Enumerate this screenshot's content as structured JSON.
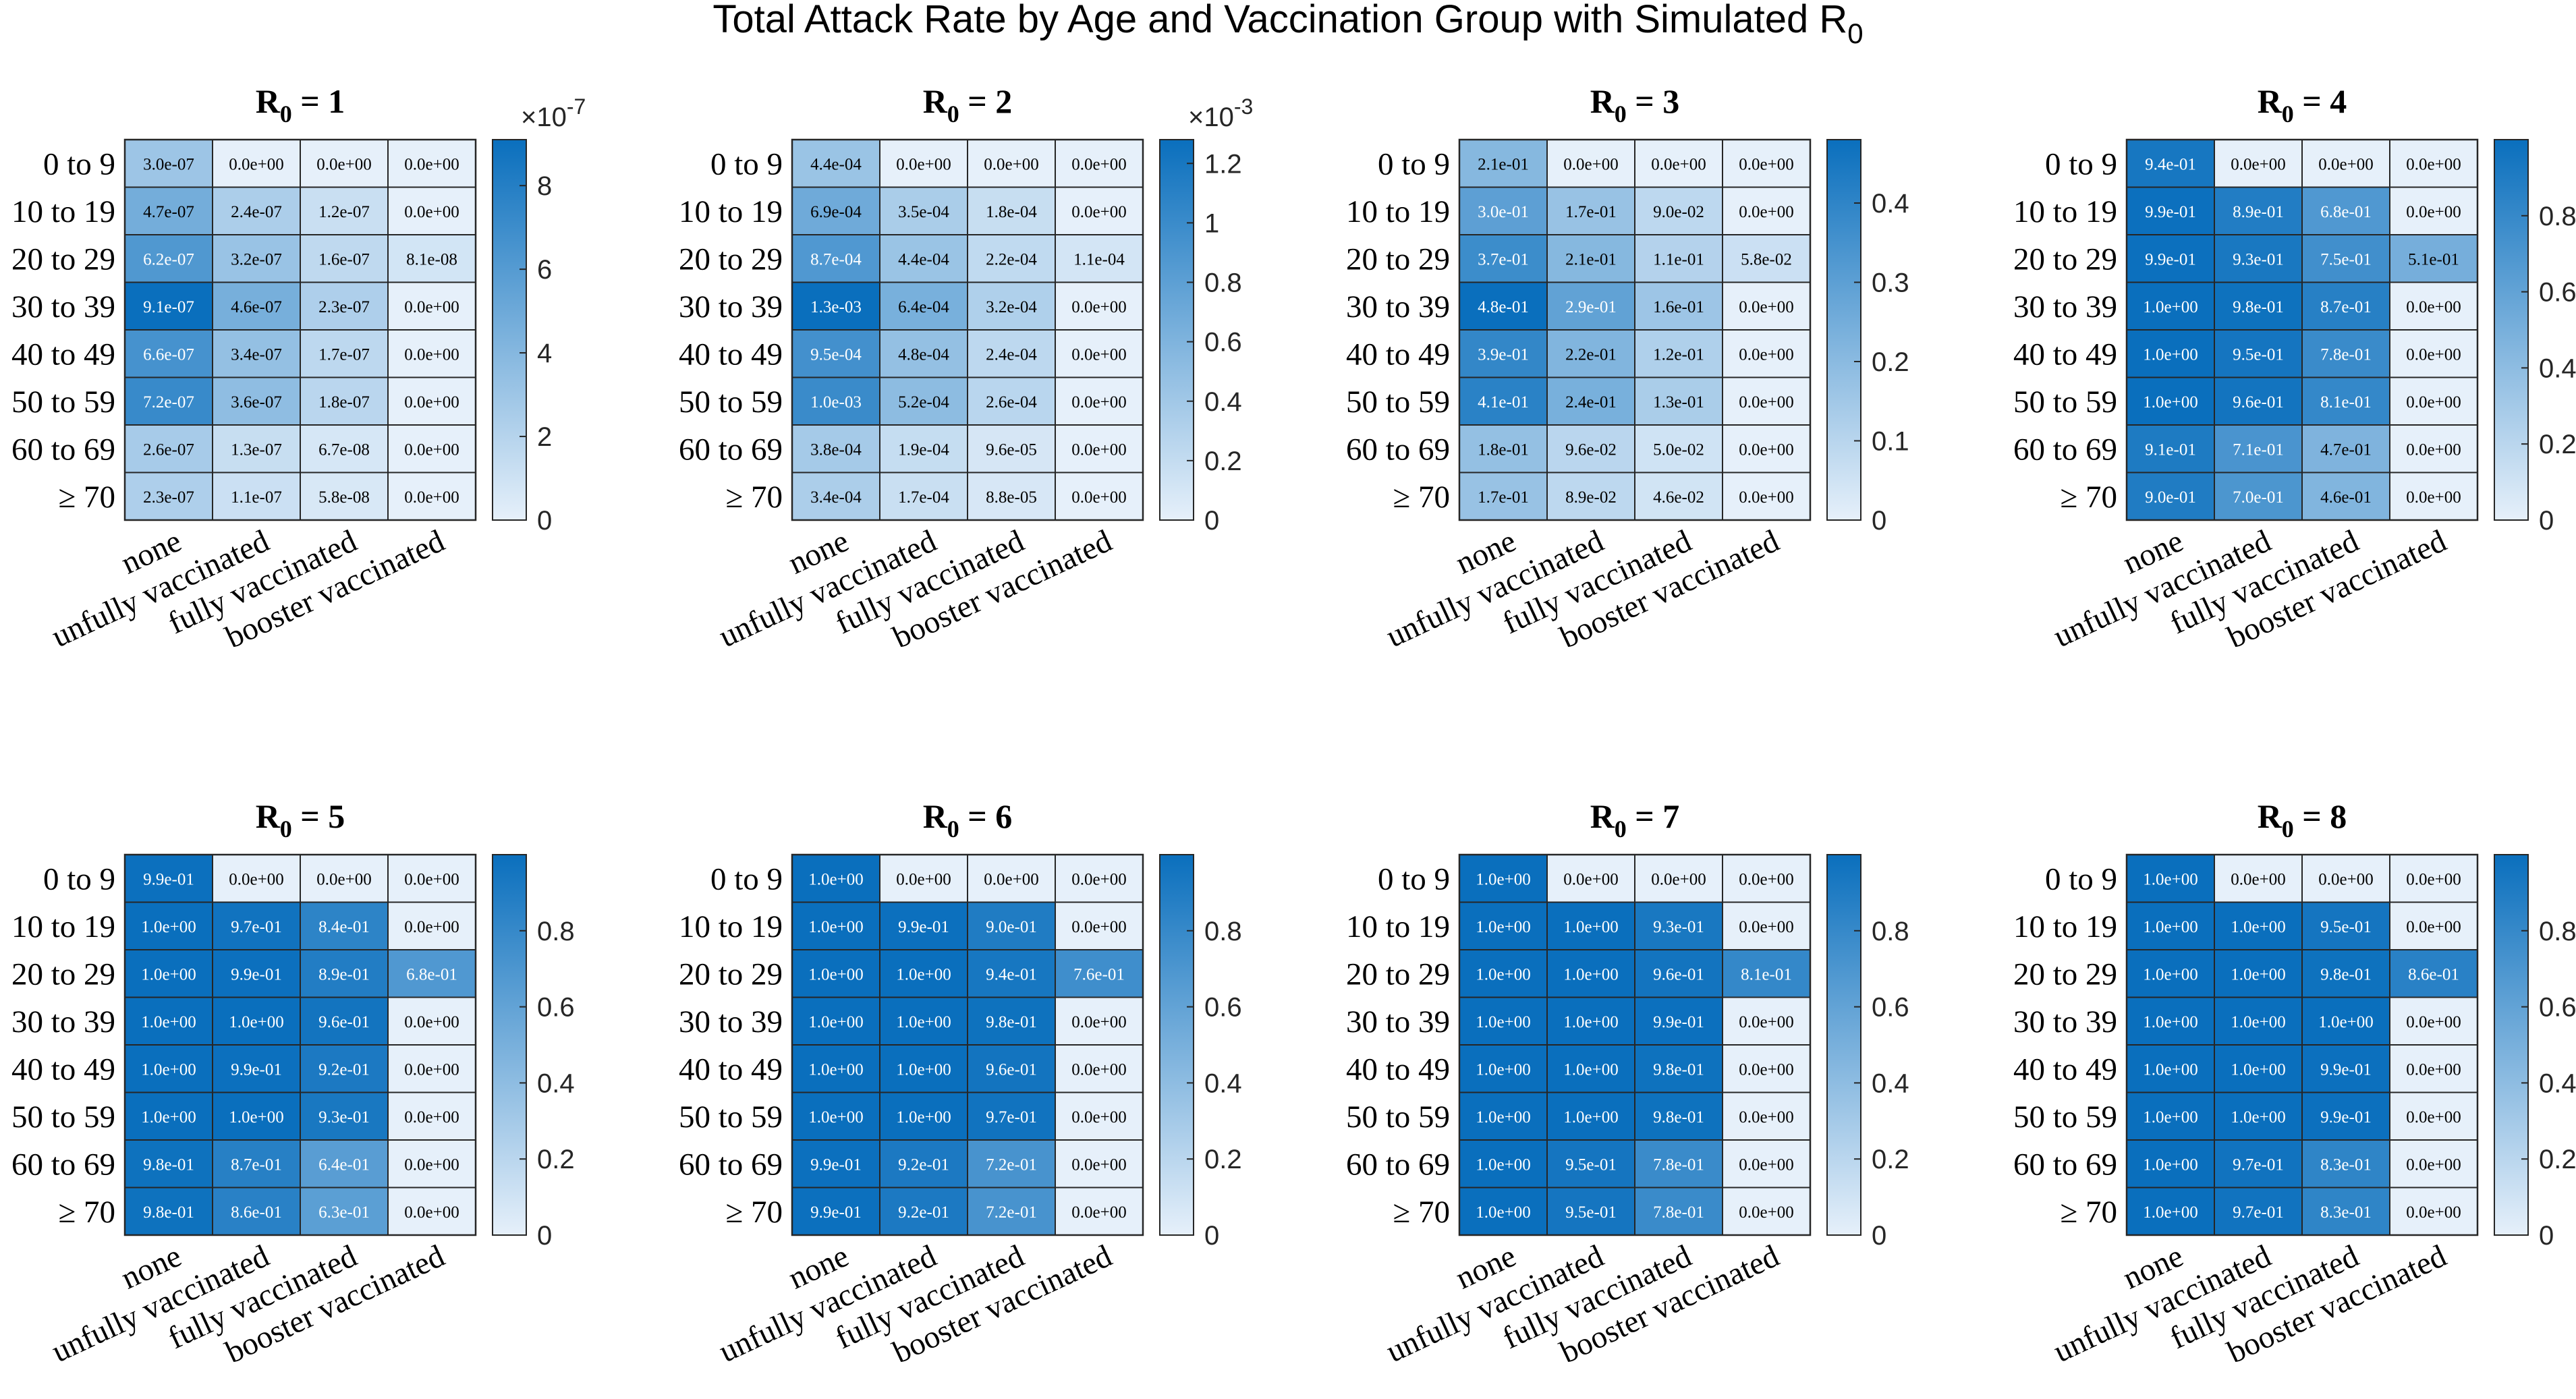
{
  "figure": {
    "title": "Total Attack Rate by Age and Vaccination Group with Simulated R",
    "title_subscript": "0"
  },
  "chart_data": [
    {
      "type": "heatmap",
      "title": "R0 = 1",
      "title_parts": [
        "R",
        "0",
        " = 1"
      ],
      "rows": [
        "0 to 9",
        "10 to 19",
        "20 to 29",
        "30 to 39",
        "40 to 49",
        "50 to 59",
        "60 to 69",
        "≥ 70"
      ],
      "columns": [
        "none",
        "unfully vaccinated",
        "fully vaccinated",
        "booster vaccinated"
      ],
      "cells": [
        [
          "3.0e-07",
          "0.0e+00",
          "0.0e+00",
          "0.0e+00"
        ],
        [
          "4.7e-07",
          "2.4e-07",
          "1.2e-07",
          "0.0e+00"
        ],
        [
          "6.2e-07",
          "3.2e-07",
          "1.6e-07",
          "8.1e-08"
        ],
        [
          "9.1e-07",
          "4.6e-07",
          "2.3e-07",
          "0.0e+00"
        ],
        [
          "6.6e-07",
          "3.4e-07",
          "1.7e-07",
          "0.0e+00"
        ],
        [
          "7.2e-07",
          "3.6e-07",
          "1.8e-07",
          "0.0e+00"
        ],
        [
          "2.6e-07",
          "1.3e-07",
          "6.7e-08",
          "0.0e+00"
        ],
        [
          "2.3e-07",
          "1.1e-07",
          "5.8e-08",
          "0.0e+00"
        ]
      ],
      "colorbar": {
        "min": 0,
        "max": 9.1e-07,
        "ticks": [
          0,
          2,
          4,
          6,
          8
        ],
        "scale": 1e-07,
        "exponent_base": "×10",
        "exponent": "-7"
      }
    },
    {
      "type": "heatmap",
      "title": "R0 = 2",
      "title_parts": [
        "R",
        "0",
        " = 2"
      ],
      "rows": [
        "0 to 9",
        "10 to 19",
        "20 to 29",
        "30 to 39",
        "40 to 49",
        "50 to 59",
        "60 to 69",
        "≥ 70"
      ],
      "columns": [
        "none",
        "unfully vaccinated",
        "fully vaccinated",
        "booster vaccinated"
      ],
      "cells": [
        [
          "4.4e-04",
          "0.0e+00",
          "0.0e+00",
          "0.0e+00"
        ],
        [
          "6.9e-04",
          "3.5e-04",
          "1.8e-04",
          "0.0e+00"
        ],
        [
          "8.7e-04",
          "4.4e-04",
          "2.2e-04",
          "1.1e-04"
        ],
        [
          "1.3e-03",
          "6.4e-04",
          "3.2e-04",
          "0.0e+00"
        ],
        [
          "9.5e-04",
          "4.8e-04",
          "2.4e-04",
          "0.0e+00"
        ],
        [
          "1.0e-03",
          "5.2e-04",
          "2.6e-04",
          "0.0e+00"
        ],
        [
          "3.8e-04",
          "1.9e-04",
          "9.6e-05",
          "0.0e+00"
        ],
        [
          "3.4e-04",
          "1.7e-04",
          "8.8e-05",
          "0.0e+00"
        ]
      ],
      "colorbar": {
        "min": 0,
        "max": 0.00128,
        "ticks": [
          0,
          0.2,
          0.4,
          0.6,
          0.8,
          1,
          1.2
        ],
        "scale": 0.001,
        "exponent_base": "×10",
        "exponent": "-3"
      }
    },
    {
      "type": "heatmap",
      "title": "R0 = 3",
      "title_parts": [
        "R",
        "0",
        " = 3"
      ],
      "rows": [
        "0 to 9",
        "10 to 19",
        "20 to 29",
        "30 to 39",
        "40 to 49",
        "50 to 59",
        "60 to 69",
        "≥ 70"
      ],
      "columns": [
        "none",
        "unfully vaccinated",
        "fully vaccinated",
        "booster vaccinated"
      ],
      "cells": [
        [
          "2.1e-01",
          "0.0e+00",
          "0.0e+00",
          "0.0e+00"
        ],
        [
          "3.0e-01",
          "1.7e-01",
          "9.0e-02",
          "0.0e+00"
        ],
        [
          "3.7e-01",
          "2.1e-01",
          "1.1e-01",
          "5.8e-02"
        ],
        [
          "4.8e-01",
          "2.9e-01",
          "1.6e-01",
          "0.0e+00"
        ],
        [
          "3.9e-01",
          "2.2e-01",
          "1.2e-01",
          "0.0e+00"
        ],
        [
          "4.1e-01",
          "2.4e-01",
          "1.3e-01",
          "0.0e+00"
        ],
        [
          "1.8e-01",
          "9.6e-02",
          "5.0e-02",
          "0.0e+00"
        ],
        [
          "1.7e-01",
          "8.9e-02",
          "4.6e-02",
          "0.0e+00"
        ]
      ],
      "colorbar": {
        "min": 0,
        "max": 0.48,
        "ticks": [
          0,
          0.1,
          0.2,
          0.3,
          0.4
        ],
        "scale": 1,
        "exponent_base": "",
        "exponent": ""
      }
    },
    {
      "type": "heatmap",
      "title": "R0 = 4",
      "title_parts": [
        "R",
        "0",
        " = 4"
      ],
      "rows": [
        "0 to 9",
        "10 to 19",
        "20 to 29",
        "30 to 39",
        "40 to 49",
        "50 to 59",
        "60 to 69",
        "≥ 70"
      ],
      "columns": [
        "none",
        "unfully vaccinated",
        "fully vaccinated",
        "booster vaccinated"
      ],
      "cells": [
        [
          "9.4e-01",
          "0.0e+00",
          "0.0e+00",
          "0.0e+00"
        ],
        [
          "9.9e-01",
          "8.9e-01",
          "6.8e-01",
          "0.0e+00"
        ],
        [
          "9.9e-01",
          "9.3e-01",
          "7.5e-01",
          "5.1e-01"
        ],
        [
          "1.0e+00",
          "9.8e-01",
          "8.7e-01",
          "0.0e+00"
        ],
        [
          "1.0e+00",
          "9.5e-01",
          "7.8e-01",
          "0.0e+00"
        ],
        [
          "1.0e+00",
          "9.6e-01",
          "8.1e-01",
          "0.0e+00"
        ],
        [
          "9.1e-01",
          "7.1e-01",
          "4.7e-01",
          "0.0e+00"
        ],
        [
          "9.0e-01",
          "7.0e-01",
          "4.6e-01",
          "0.0e+00"
        ]
      ],
      "colorbar": {
        "min": 0,
        "max": 1.0,
        "ticks": [
          0,
          0.2,
          0.4,
          0.6,
          0.8
        ],
        "scale": 1,
        "exponent_base": "",
        "exponent": ""
      }
    },
    {
      "type": "heatmap",
      "title": "R0 = 5",
      "title_parts": [
        "R",
        "0",
        " = 5"
      ],
      "rows": [
        "0 to 9",
        "10 to 19",
        "20 to 29",
        "30 to 39",
        "40 to 49",
        "50 to 59",
        "60 to 69",
        "≥ 70"
      ],
      "columns": [
        "none",
        "unfully vaccinated",
        "fully vaccinated",
        "booster vaccinated"
      ],
      "cells": [
        [
          "9.9e-01",
          "0.0e+00",
          "0.0e+00",
          "0.0e+00"
        ],
        [
          "1.0e+00",
          "9.7e-01",
          "8.4e-01",
          "0.0e+00"
        ],
        [
          "1.0e+00",
          "9.9e-01",
          "8.9e-01",
          "6.8e-01"
        ],
        [
          "1.0e+00",
          "1.0e+00",
          "9.6e-01",
          "0.0e+00"
        ],
        [
          "1.0e+00",
          "9.9e-01",
          "9.2e-01",
          "0.0e+00"
        ],
        [
          "1.0e+00",
          "1.0e+00",
          "9.3e-01",
          "0.0e+00"
        ],
        [
          "9.8e-01",
          "8.7e-01",
          "6.4e-01",
          "0.0e+00"
        ],
        [
          "9.8e-01",
          "8.6e-01",
          "6.3e-01",
          "0.0e+00"
        ]
      ],
      "colorbar": {
        "min": 0,
        "max": 1.0,
        "ticks": [
          0,
          0.2,
          0.4,
          0.6,
          0.8
        ],
        "scale": 1,
        "exponent_base": "",
        "exponent": ""
      }
    },
    {
      "type": "heatmap",
      "title": "R0 = 6",
      "title_parts": [
        "R",
        "0",
        " = 6"
      ],
      "rows": [
        "0 to 9",
        "10 to 19",
        "20 to 29",
        "30 to 39",
        "40 to 49",
        "50 to 59",
        "60 to 69",
        "≥ 70"
      ],
      "columns": [
        "none",
        "unfully vaccinated",
        "fully vaccinated",
        "booster vaccinated"
      ],
      "cells": [
        [
          "1.0e+00",
          "0.0e+00",
          "0.0e+00",
          "0.0e+00"
        ],
        [
          "1.0e+00",
          "9.9e-01",
          "9.0e-01",
          "0.0e+00"
        ],
        [
          "1.0e+00",
          "1.0e+00",
          "9.4e-01",
          "7.6e-01"
        ],
        [
          "1.0e+00",
          "1.0e+00",
          "9.8e-01",
          "0.0e+00"
        ],
        [
          "1.0e+00",
          "1.0e+00",
          "9.6e-01",
          "0.0e+00"
        ],
        [
          "1.0e+00",
          "1.0e+00",
          "9.7e-01",
          "0.0e+00"
        ],
        [
          "9.9e-01",
          "9.2e-01",
          "7.2e-01",
          "0.0e+00"
        ],
        [
          "9.9e-01",
          "9.2e-01",
          "7.2e-01",
          "0.0e+00"
        ]
      ],
      "colorbar": {
        "min": 0,
        "max": 1.0,
        "ticks": [
          0,
          0.2,
          0.4,
          0.6,
          0.8
        ],
        "scale": 1,
        "exponent_base": "",
        "exponent": ""
      }
    },
    {
      "type": "heatmap",
      "title": "R0 = 7",
      "title_parts": [
        "R",
        "0",
        " = 7"
      ],
      "rows": [
        "0 to 9",
        "10 to 19",
        "20 to 29",
        "30 to 39",
        "40 to 49",
        "50 to 59",
        "60 to 69",
        "≥ 70"
      ],
      "columns": [
        "none",
        "unfully vaccinated",
        "fully vaccinated",
        "booster vaccinated"
      ],
      "cells": [
        [
          "1.0e+00",
          "0.0e+00",
          "0.0e+00",
          "0.0e+00"
        ],
        [
          "1.0e+00",
          "1.0e+00",
          "9.3e-01",
          "0.0e+00"
        ],
        [
          "1.0e+00",
          "1.0e+00",
          "9.6e-01",
          "8.1e-01"
        ],
        [
          "1.0e+00",
          "1.0e+00",
          "9.9e-01",
          "0.0e+00"
        ],
        [
          "1.0e+00",
          "1.0e+00",
          "9.8e-01",
          "0.0e+00"
        ],
        [
          "1.0e+00",
          "1.0e+00",
          "9.8e-01",
          "0.0e+00"
        ],
        [
          "1.0e+00",
          "9.5e-01",
          "7.8e-01",
          "0.0e+00"
        ],
        [
          "1.0e+00",
          "9.5e-01",
          "7.8e-01",
          "0.0e+00"
        ]
      ],
      "colorbar": {
        "min": 0,
        "max": 1.0,
        "ticks": [
          0,
          0.2,
          0.4,
          0.6,
          0.8
        ],
        "scale": 1,
        "exponent_base": "",
        "exponent": ""
      }
    },
    {
      "type": "heatmap",
      "title": "R0 = 8",
      "title_parts": [
        "R",
        "0",
        " = 8"
      ],
      "rows": [
        "0 to 9",
        "10 to 19",
        "20 to 29",
        "30 to 39",
        "40 to 49",
        "50 to 59",
        "60 to 69",
        "≥ 70"
      ],
      "columns": [
        "none",
        "unfully vaccinated",
        "fully vaccinated",
        "booster vaccinated"
      ],
      "cells": [
        [
          "1.0e+00",
          "0.0e+00",
          "0.0e+00",
          "0.0e+00"
        ],
        [
          "1.0e+00",
          "1.0e+00",
          "9.5e-01",
          "0.0e+00"
        ],
        [
          "1.0e+00",
          "1.0e+00",
          "9.8e-01",
          "8.6e-01"
        ],
        [
          "1.0e+00",
          "1.0e+00",
          "1.0e+00",
          "0.0e+00"
        ],
        [
          "1.0e+00",
          "1.0e+00",
          "9.9e-01",
          "0.0e+00"
        ],
        [
          "1.0e+00",
          "1.0e+00",
          "9.9e-01",
          "0.0e+00"
        ],
        [
          "1.0e+00",
          "9.7e-01",
          "8.3e-01",
          "0.0e+00"
        ],
        [
          "1.0e+00",
          "9.7e-01",
          "8.3e-01",
          "0.0e+00"
        ]
      ],
      "colorbar": {
        "min": 0,
        "max": 1.0,
        "ticks": [
          0,
          0.2,
          0.4,
          0.6,
          0.8
        ],
        "scale": 1,
        "exponent_base": "",
        "exponent": ""
      }
    }
  ],
  "colors": {
    "low": "#e6f0fa",
    "high": "#0a6fbd",
    "grid": "#262626",
    "text_dark": "#000000",
    "text_light": "#ffffff"
  }
}
